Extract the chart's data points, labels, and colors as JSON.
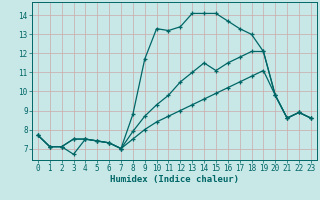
{
  "bg_color": "#c8e8e8",
  "grid_color": "#b8d0d0",
  "line_color": "#006666",
  "xlabel": "Humidex (Indice chaleur)",
  "xlim": [
    -0.5,
    23.5
  ],
  "ylim": [
    6.4,
    14.7
  ],
  "xticks": [
    0,
    1,
    2,
    3,
    4,
    5,
    6,
    7,
    8,
    9,
    10,
    11,
    12,
    13,
    14,
    15,
    16,
    17,
    18,
    19,
    20,
    21,
    22,
    23
  ],
  "yticks": [
    7,
    8,
    9,
    10,
    11,
    12,
    13,
    14
  ],
  "line1_x": [
    0,
    1,
    2,
    3,
    4,
    5,
    6,
    7,
    8,
    9,
    10,
    11,
    12,
    13,
    14,
    15,
    16,
    17,
    18,
    19,
    20,
    21,
    22,
    23
  ],
  "line1_y": [
    7.7,
    7.1,
    7.1,
    6.7,
    7.5,
    7.4,
    7.3,
    7.0,
    8.8,
    11.7,
    13.3,
    13.2,
    13.4,
    14.1,
    14.1,
    14.1,
    13.7,
    13.3,
    13.0,
    12.1,
    9.8,
    8.6,
    8.9,
    8.6
  ],
  "line2_x": [
    0,
    1,
    2,
    3,
    4,
    5,
    6,
    7,
    8,
    9,
    10,
    11,
    12,
    13,
    14,
    15,
    16,
    17,
    18,
    19,
    20,
    21,
    22,
    23
  ],
  "line2_y": [
    7.7,
    7.1,
    7.1,
    7.5,
    7.5,
    7.4,
    7.3,
    7.0,
    7.9,
    8.7,
    9.3,
    9.8,
    10.5,
    11.0,
    11.5,
    11.1,
    11.5,
    11.8,
    12.1,
    12.1,
    9.8,
    8.6,
    8.9,
    8.6
  ],
  "line3_x": [
    0,
    1,
    2,
    3,
    4,
    5,
    6,
    7,
    8,
    9,
    10,
    11,
    12,
    13,
    14,
    15,
    16,
    17,
    18,
    19,
    20,
    21,
    22,
    23
  ],
  "line3_y": [
    7.7,
    7.1,
    7.1,
    7.5,
    7.5,
    7.4,
    7.3,
    7.0,
    7.5,
    8.0,
    8.4,
    8.7,
    9.0,
    9.3,
    9.6,
    9.9,
    10.2,
    10.5,
    10.8,
    11.1,
    9.8,
    8.6,
    8.9,
    8.6
  ],
  "marker_x1": [
    0,
    1,
    2,
    3,
    4,
    5,
    6,
    7,
    9,
    10,
    11,
    12,
    13,
    14,
    15,
    16,
    17,
    18,
    19,
    20,
    21,
    22,
    23
  ],
  "marker_y1": [
    7.7,
    7.1,
    7.1,
    6.7,
    7.5,
    7.4,
    7.3,
    7.0,
    11.7,
    13.3,
    13.2,
    13.4,
    14.1,
    14.1,
    14.1,
    13.7,
    13.3,
    13.0,
    12.1,
    9.8,
    8.6,
    8.9,
    8.6
  ]
}
